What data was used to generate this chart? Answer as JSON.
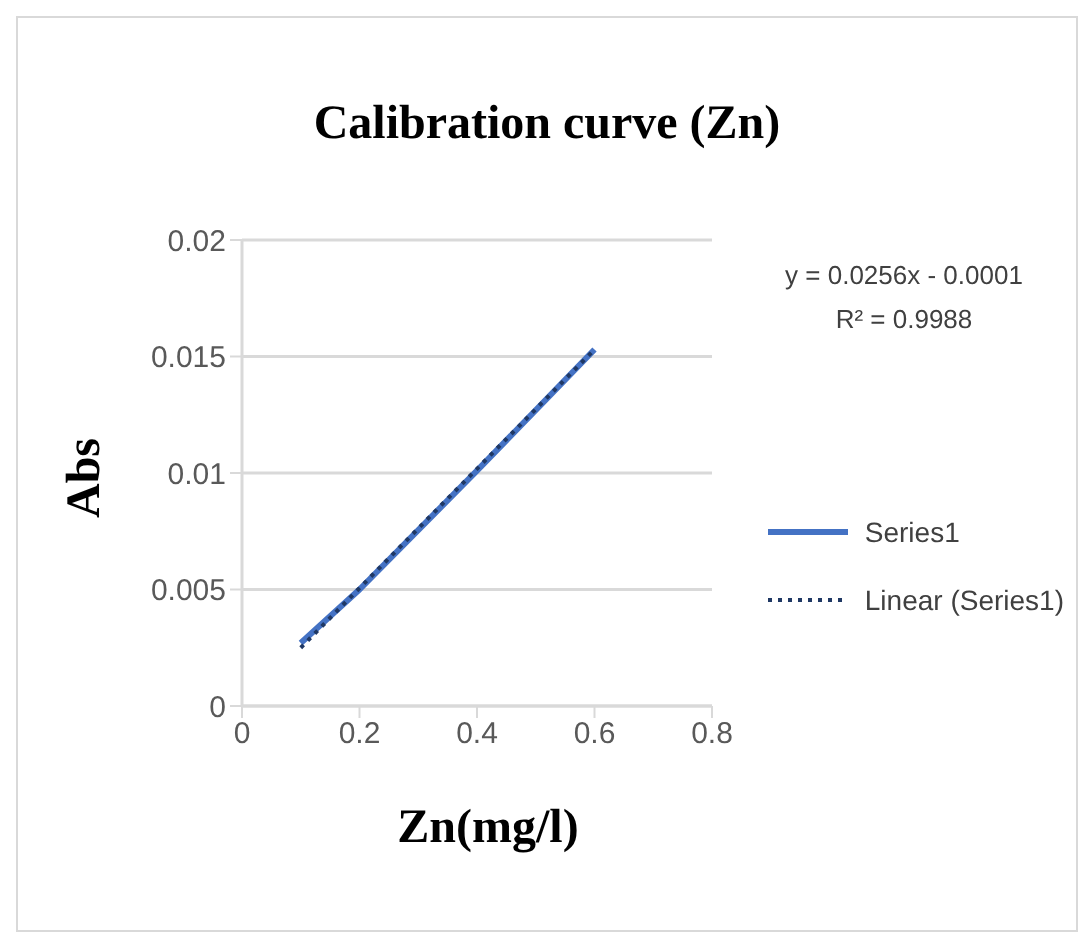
{
  "chart_data": {
    "type": "line",
    "title": "Calibration curve (Zn)",
    "xlabel": "Zn(mg/l)",
    "ylabel": "Abs",
    "series": [
      {
        "name": "Series1",
        "color": "#4472c4",
        "x": [
          0.1,
          0.2,
          0.4,
          0.6
        ],
        "values": [
          0.0027,
          0.005,
          0.0101,
          0.0153
        ]
      },
      {
        "name": "Linear (Series1)",
        "type": "line",
        "line_style": "dotted",
        "color": "#1f3864",
        "x": [
          0.1,
          0.6
        ],
        "values": [
          0.0025,
          0.0153
        ]
      }
    ],
    "xlim": [
      0,
      0.8
    ],
    "xticks": [
      0,
      0.2,
      0.4,
      0.6,
      0.8
    ],
    "ylim": [
      0,
      0.02
    ],
    "yticks": [
      0,
      0.005,
      0.01,
      0.015,
      0.02
    ],
    "grid": "y",
    "legend": "right",
    "marker": "none",
    "line_style": "solid",
    "annotations": [
      "y = 0.0256x - 0.0001",
      "R² = 0.9988"
    ]
  }
}
